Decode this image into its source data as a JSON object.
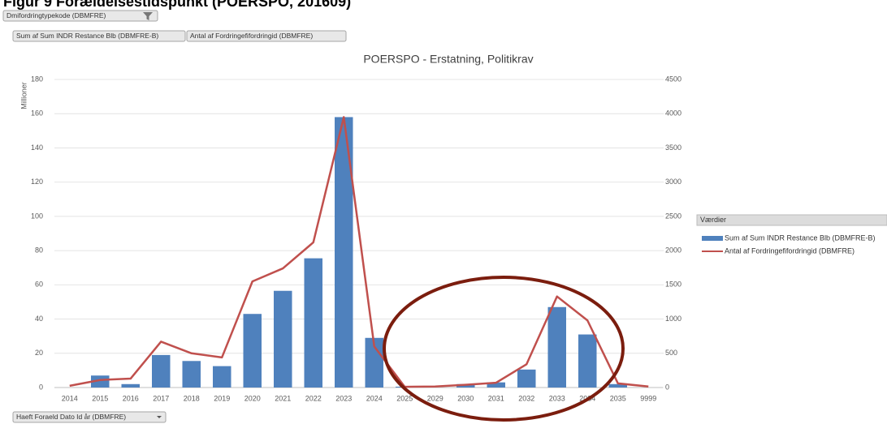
{
  "page_title": "Figur 9 Forældelsestidspunkt (POERSPO, 201609)",
  "filter_button": "Dmifordringtypekode (DBMFRE)",
  "value_buttons": [
    "Sum af Sum INDR Restance Blb (DBMFRE-B)",
    "Antal af Fordringefifordringid (DBMFRE)"
  ],
  "axis_button": "Haeft Foraeld Dato Id år (DBMFRE)",
  "chart_data": {
    "type": "bar+line",
    "title": "POERSPO - Erstatning, Politikrav",
    "ylabel": "Millioner",
    "legend_title": "Værdier",
    "legend_position": "right",
    "grid": true,
    "categories": [
      "2014",
      "2015",
      "2016",
      "2017",
      "2018",
      "2019",
      "2020",
      "2021",
      "2022",
      "2023",
      "2024",
      "2025",
      "2029",
      "2030",
      "2031",
      "2032",
      "2033",
      "2034",
      "2035",
      "9999"
    ],
    "series": [
      {
        "name": "Sum af Sum INDR Restance Blb (DBMFRE-B)",
        "type": "bar",
        "color": "#4f81bd",
        "axis": "y",
        "values": [
          0,
          7,
          2,
          19,
          15.5,
          12.5,
          43,
          56.5,
          75.5,
          158,
          29,
          0.5,
          0,
          2,
          3,
          10.5,
          47,
          31,
          2,
          0
        ]
      },
      {
        "name": "Antal af Fordringefifordringid (DBMFRE)",
        "type": "line",
        "color": "#c0504d",
        "axis": "y2",
        "values": [
          25,
          110,
          130,
          670,
          500,
          440,
          1550,
          1740,
          2120,
          3950,
          600,
          10,
          15,
          40,
          70,
          340,
          1330,
          980,
          60,
          15
        ]
      }
    ],
    "ylim": [
      0,
      180
    ],
    "yticks": [
      0,
      20,
      40,
      60,
      80,
      100,
      120,
      140,
      160,
      180
    ],
    "y2lim": [
      0,
      4500
    ],
    "y2ticks": [
      0,
      500,
      1000,
      1500,
      2000,
      2500,
      3000,
      3500,
      4000,
      4500
    ]
  }
}
